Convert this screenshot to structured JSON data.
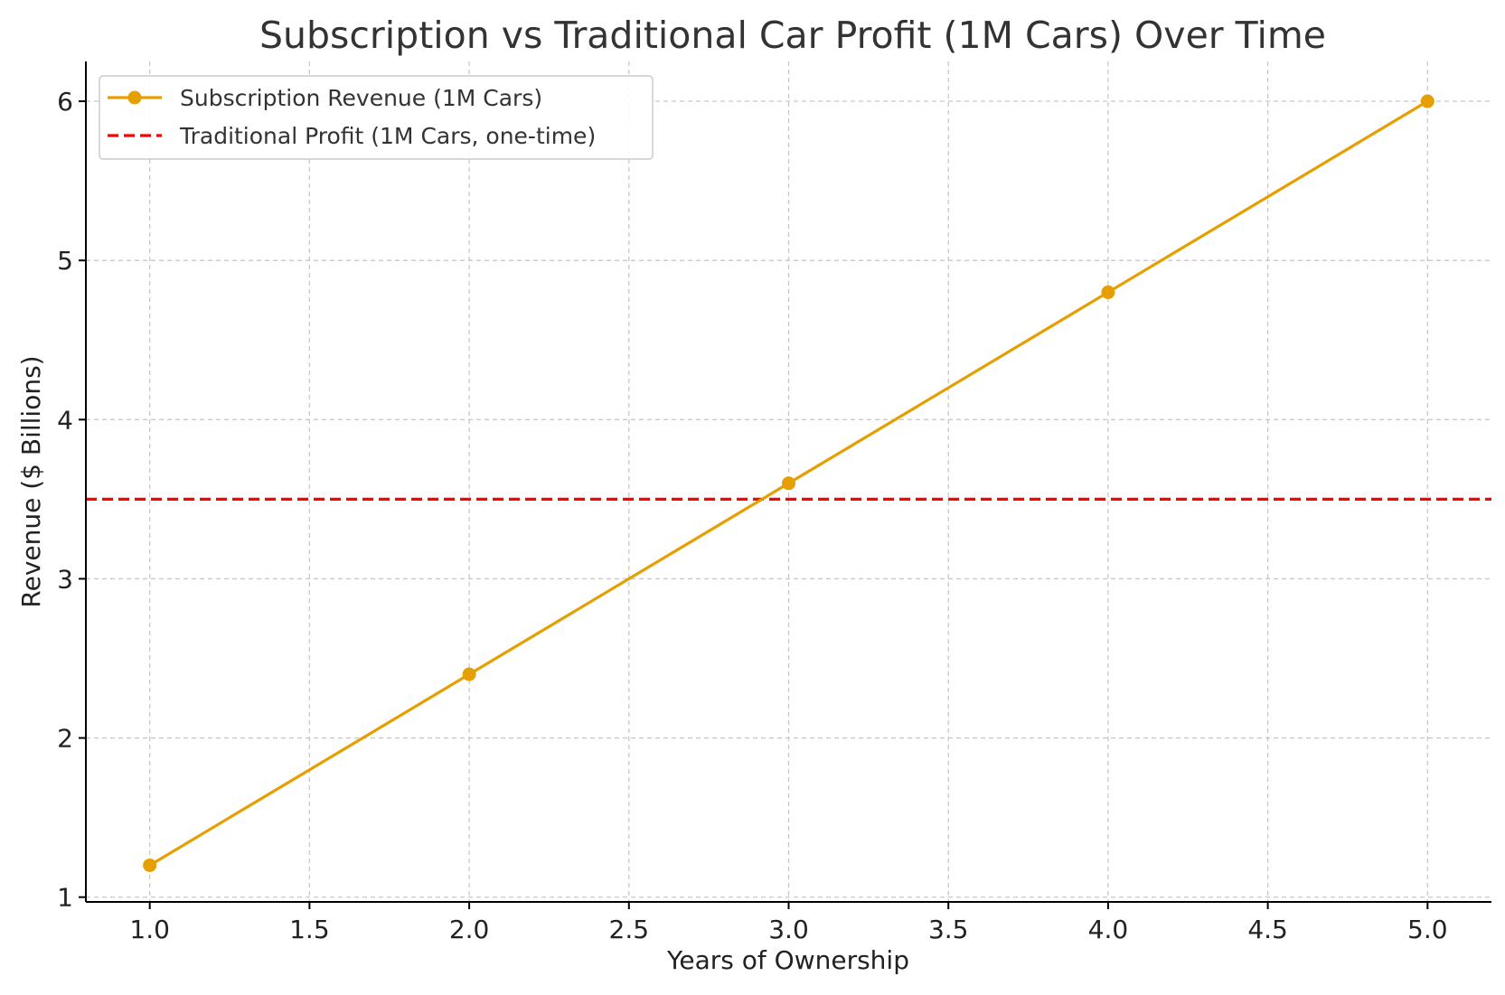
{
  "chart_data": {
    "type": "line",
    "title": "Subscription vs Traditional Car Profit (1M Cars) Over Time",
    "xlabel": "Years of Ownership",
    "ylabel": "Revenue ($ Billions)",
    "xlim": [
      0.8,
      5.2
    ],
    "ylim": [
      0.97,
      6.25
    ],
    "xticks": [
      1.0,
      1.5,
      2.0,
      2.5,
      3.0,
      3.5,
      4.0,
      4.5,
      5.0
    ],
    "xtick_labels": [
      "1.0",
      "1.5",
      "2.0",
      "2.5",
      "3.0",
      "3.5",
      "4.0",
      "4.5",
      "5.0"
    ],
    "yticks": [
      1,
      2,
      3,
      4,
      5,
      6
    ],
    "ytick_labels": [
      "1",
      "2",
      "3",
      "4",
      "5",
      "6"
    ],
    "grid": true,
    "legend_position": "top-left",
    "series": [
      {
        "name": "Subscription Revenue (1M Cars)",
        "style": "solid-with-markers",
        "color": "#E69F00",
        "x": [
          1,
          2,
          3,
          4,
          5
        ],
        "values": [
          1.2,
          2.4,
          3.6,
          4.8,
          6.0
        ]
      },
      {
        "name": "Traditional Profit (1M Cars, one-time)",
        "style": "dashed-horizontal",
        "color": "#FF0000",
        "value": 3.5
      }
    ]
  }
}
